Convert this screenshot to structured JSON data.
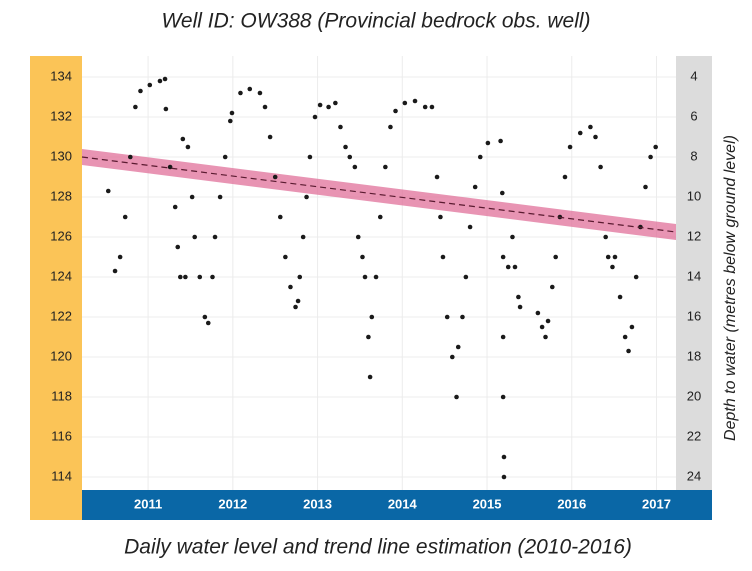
{
  "chart_data": {
    "type": "scatter",
    "title": "Well ID: OW388  (Provincial bedrock obs. well)",
    "caption": "Daily water level and trend line estimation  (2010-2016)",
    "y2label": "Depth to water (metres below ground level)",
    "color": "#1a1a1a",
    "x": [
      2010.53,
      2010.61,
      2010.67,
      2010.73,
      2010.79,
      2010.85,
      2010.91,
      2011.02,
      2011.14,
      2011.2,
      2011.21,
      2011.26,
      2011.32,
      2011.35,
      2011.38,
      2011.44,
      2011.41,
      2011.47,
      2011.52,
      2011.55,
      2011.61,
      2011.67,
      2011.71,
      2011.76,
      2011.79,
      2011.85,
      2011.91,
      2011.97,
      2011.99,
      2012.09,
      2012.2,
      2012.32,
      2012.38,
      2012.44,
      2012.5,
      2012.56,
      2012.62,
      2012.68,
      2012.74,
      2012.77,
      2012.79,
      2012.83,
      2012.87,
      2012.91,
      2012.97,
      2013.03,
      2013.13,
      2013.21,
      2013.27,
      2013.33,
      2013.38,
      2013.44,
      2013.48,
      2013.53,
      2013.56,
      2013.6,
      2013.62,
      2013.64,
      2013.69,
      2013.74,
      2013.8,
      2013.86,
      2013.92,
      2014.03,
      2014.15,
      2014.27,
      2014.35,
      2014.41,
      2014.45,
      2014.48,
      2014.53,
      2014.59,
      2014.64,
      2014.66,
      2014.71,
      2014.75,
      2014.8,
      2014.86,
      2014.92,
      2015.01,
      2015.16,
      2015.18,
      2015.19,
      2015.19,
      2015.19,
      2015.2,
      2015.2,
      2015.25,
      2015.3,
      2015.33,
      2015.37,
      2015.39,
      2015.6,
      2015.65,
      2015.69,
      2015.72,
      2015.77,
      2015.81,
      2015.86,
      2015.92,
      2015.98,
      2016.1,
      2016.22,
      2016.28,
      2016.34,
      2016.4,
      2016.43,
      2016.48,
      2016.51,
      2016.57,
      2016.63,
      2016.67,
      2016.71,
      2016.76,
      2016.81,
      2016.87,
      2016.93,
      2016.99
    ],
    "values": [
      128.3,
      124.3,
      125,
      127,
      130,
      132.5,
      133.3,
      133.6,
      133.8,
      133.9,
      132.4,
      129.5,
      127.5,
      125.5,
      124,
      124,
      130.9,
      130.5,
      128,
      126,
      124,
      122,
      121.7,
      124,
      126,
      128,
      130,
      131.8,
      132.2,
      133.2,
      133.4,
      133.2,
      132.5,
      131,
      129,
      127,
      125,
      123.5,
      122.5,
      122.8,
      124,
      126,
      128,
      130,
      132,
      132.6,
      132.5,
      132.7,
      131.5,
      130.5,
      130,
      129.5,
      126,
      125,
      124,
      121,
      119,
      122,
      124,
      127,
      129.5,
      131.5,
      132.3,
      132.7,
      132.8,
      132.5,
      132.5,
      129,
      127,
      125,
      122,
      120,
      118,
      120.5,
      122,
      124,
      126.5,
      128.5,
      130,
      130.7,
      130.8,
      128.2,
      125,
      121,
      118,
      115,
      114,
      124.5,
      126,
      124.5,
      123,
      122.5,
      122.2,
      121.5,
      121,
      121.8,
      123.5,
      125,
      127,
      129,
      130.5,
      131.2,
      131.5,
      131,
      129.5,
      126,
      125,
      124.5,
      125,
      123,
      121,
      120.3,
      121.5,
      124,
      126.5,
      128.5,
      130,
      130.5
    ],
    "trend": {
      "x": [
        2010.22,
        2017.23
      ],
      "values": [
        130.0,
        126.25
      ],
      "lower": [
        129.6,
        125.85
      ],
      "upper": [
        130.4,
        126.65
      ],
      "color": "#e0709a"
    },
    "xlim": [
      2010.22,
      2017.23
    ],
    "xticks": [
      2011,
      2012,
      2013,
      2014,
      2015,
      2016,
      2017
    ],
    "ylim": [
      113.35,
      135.05
    ],
    "yticks": [
      114,
      116,
      118,
      120,
      122,
      124,
      126,
      128,
      130,
      132,
      134
    ],
    "y2lim": [
      24.65,
      2.95
    ],
    "y2ticks": [
      4,
      6,
      8,
      10,
      12,
      14,
      16,
      18,
      20,
      22,
      24
    ],
    "grid": true
  }
}
